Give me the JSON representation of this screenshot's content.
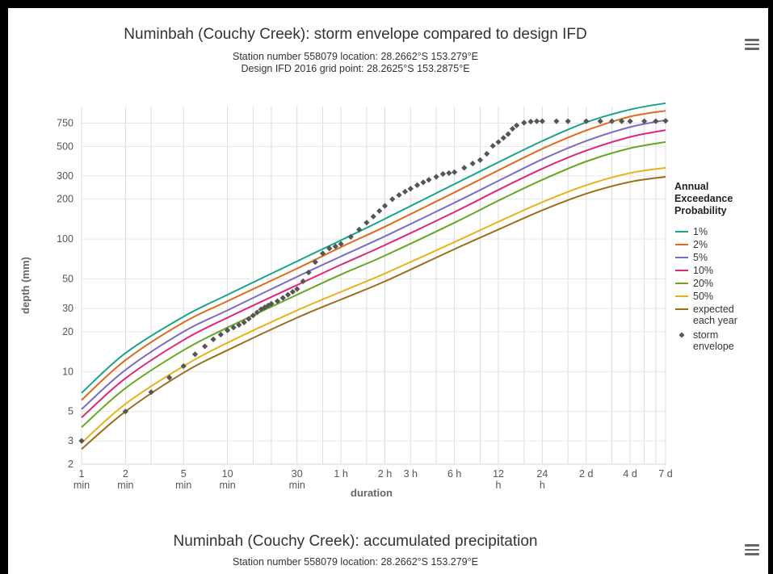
{
  "top_chart": {
    "title": "Numinbah (Couchy Creek): storm envelope compared to design IFD",
    "subtitle_line1": "Station number 558079 location: 28.2662°S 153.279°E",
    "subtitle_line2": "Design IFD 2016 grid point: 28.2625°S 153.2875°E",
    "menu_icon": "hamburger-menu-icon"
  },
  "bottom_chart": {
    "title": "Numinbah (Couchy Creek): accumulated precipitation",
    "subtitle_line1": "Station number 558079 location: 28.2662°S 153.279°E",
    "menu_icon": "hamburger-menu-icon"
  },
  "chart_data": {
    "type": "line",
    "title": "Numinbah (Couchy Creek): storm envelope compared to design IFD",
    "xlabel": "duration",
    "ylabel": "depth (mm)",
    "x_scale": "log",
    "y_scale": "log",
    "x_unit": "minutes",
    "xlim": [
      1,
      10080
    ],
    "ylim": [
      2,
      1000
    ],
    "grid": true,
    "legend_title": "Annual Exceedance Probability",
    "legend_placement": "right",
    "y_ticks": [
      {
        "value": 2,
        "label": "2"
      },
      {
        "value": 3,
        "label": "3"
      },
      {
        "value": 5,
        "label": "5"
      },
      {
        "value": 10,
        "label": "10"
      },
      {
        "value": 20,
        "label": "20"
      },
      {
        "value": 30,
        "label": "30"
      },
      {
        "value": 50,
        "label": "50"
      },
      {
        "value": 100,
        "label": "100"
      },
      {
        "value": 200,
        "label": "200"
      },
      {
        "value": 300,
        "label": "300"
      },
      {
        "value": 500,
        "label": "500"
      },
      {
        "value": 750,
        "label": "750"
      }
    ],
    "x_ticks": [
      {
        "value": 1,
        "label": "1",
        "sub": "min"
      },
      {
        "value": 2,
        "label": "2",
        "sub": "min"
      },
      {
        "value": 5,
        "label": "5",
        "sub": "min"
      },
      {
        "value": 10,
        "label": "10",
        "sub": "min"
      },
      {
        "value": 30,
        "label": "30",
        "sub": "min"
      },
      {
        "value": 60,
        "label": "1 h",
        "sub": ""
      },
      {
        "value": 120,
        "label": "2 h",
        "sub": ""
      },
      {
        "value": 180,
        "label": "3 h",
        "sub": ""
      },
      {
        "value": 360,
        "label": "6 h",
        "sub": ""
      },
      {
        "value": 720,
        "label": "12",
        "sub": "h"
      },
      {
        "value": 1440,
        "label": "24",
        "sub": "h"
      },
      {
        "value": 2880,
        "label": "2 d",
        "sub": ""
      },
      {
        "value": 5760,
        "label": "4 d",
        "sub": ""
      },
      {
        "value": 10080,
        "label": "7 d",
        "sub": ""
      }
    ],
    "x_gridlines": [
      1,
      2,
      3,
      5,
      10,
      15,
      20,
      30,
      45,
      60,
      90,
      120,
      180,
      270,
      360,
      540,
      720,
      1080,
      1440,
      2160,
      2880,
      4320,
      5760,
      7200,
      8640,
      10080
    ],
    "x": [
      1,
      2,
      5,
      10,
      30,
      60,
      120,
      360,
      720,
      1440,
      2880,
      5760,
      10080
    ],
    "series": [
      {
        "name": "1%",
        "color": "#1aa38a",
        "values": [
          6.9,
          13.8,
          26,
          38,
          68,
          98,
          142,
          260,
          380,
          550,
          760,
          950,
          1060
        ]
      },
      {
        "name": "2%",
        "color": "#e06a1b",
        "values": [
          6.1,
          12.2,
          23.5,
          34,
          60,
          87,
          124,
          225,
          330,
          480,
          660,
          840,
          930
        ]
      },
      {
        "name": "5%",
        "color": "#7b6cc4",
        "values": [
          5.2,
          10.3,
          20,
          29,
          52,
          74,
          105,
          188,
          275,
          400,
          550,
          700,
          790
        ]
      },
      {
        "name": "10%",
        "color": "#e0267a",
        "values": [
          4.5,
          8.9,
          17.3,
          25.5,
          45,
          64,
          90,
          160,
          235,
          340,
          465,
          590,
          665
        ]
      },
      {
        "name": "20%",
        "color": "#66a823",
        "values": [
          3.8,
          7.5,
          14.5,
          21.5,
          38,
          54,
          75,
          133,
          195,
          280,
          385,
          485,
          540
        ]
      },
      {
        "name": "50%",
        "color": "#e8b21c",
        "values": [
          2.9,
          5.7,
          11,
          16.5,
          29,
          40,
          55,
          95,
          135,
          190,
          255,
          315,
          345
        ]
      },
      {
        "name": "expected each year",
        "color": "#9a6e1d",
        "values": [
          2.6,
          5.0,
          9.8,
          14.5,
          25.5,
          35,
          48,
          84,
          118,
          165,
          220,
          270,
          295
        ]
      }
    ],
    "storm_envelope": {
      "name": "storm envelope",
      "color": "#555555",
      "x": [
        1,
        2,
        3,
        4,
        5,
        6,
        7,
        8,
        9,
        10,
        11,
        12,
        13,
        14,
        15,
        16,
        17,
        18,
        19,
        20,
        22,
        24,
        26,
        28,
        30,
        33,
        36,
        40,
        45,
        50,
        55,
        60,
        70,
        80,
        90,
        100,
        110,
        120,
        135,
        150,
        165,
        180,
        200,
        220,
        240,
        270,
        300,
        330,
        360,
        420,
        480,
        540,
        600,
        660,
        720,
        780,
        840,
        900,
        960,
        1080,
        1200,
        1320,
        1440,
        1800,
        2160,
        2880,
        3600,
        4320,
        5040,
        5760,
        7200,
        8640,
        10080
      ],
      "values": [
        3,
        5,
        7,
        9,
        11,
        13.5,
        15.5,
        17.5,
        19,
        20.5,
        21.5,
        22.5,
        23.5,
        25,
        26.5,
        28,
        29.5,
        30.5,
        31.5,
        32.5,
        34,
        36,
        38,
        40,
        42,
        48,
        56,
        67,
        78,
        85,
        88,
        92,
        104,
        118,
        133,
        148,
        163,
        178,
        200,
        215,
        228,
        240,
        255,
        268,
        280,
        295,
        310,
        315,
        320,
        345,
        372,
        395,
        440,
        505,
        540,
        580,
        620,
        680,
        720,
        755,
        770,
        775,
        775,
        775,
        775,
        775,
        775,
        775,
        775,
        775,
        775,
        775,
        780
      ]
    }
  }
}
